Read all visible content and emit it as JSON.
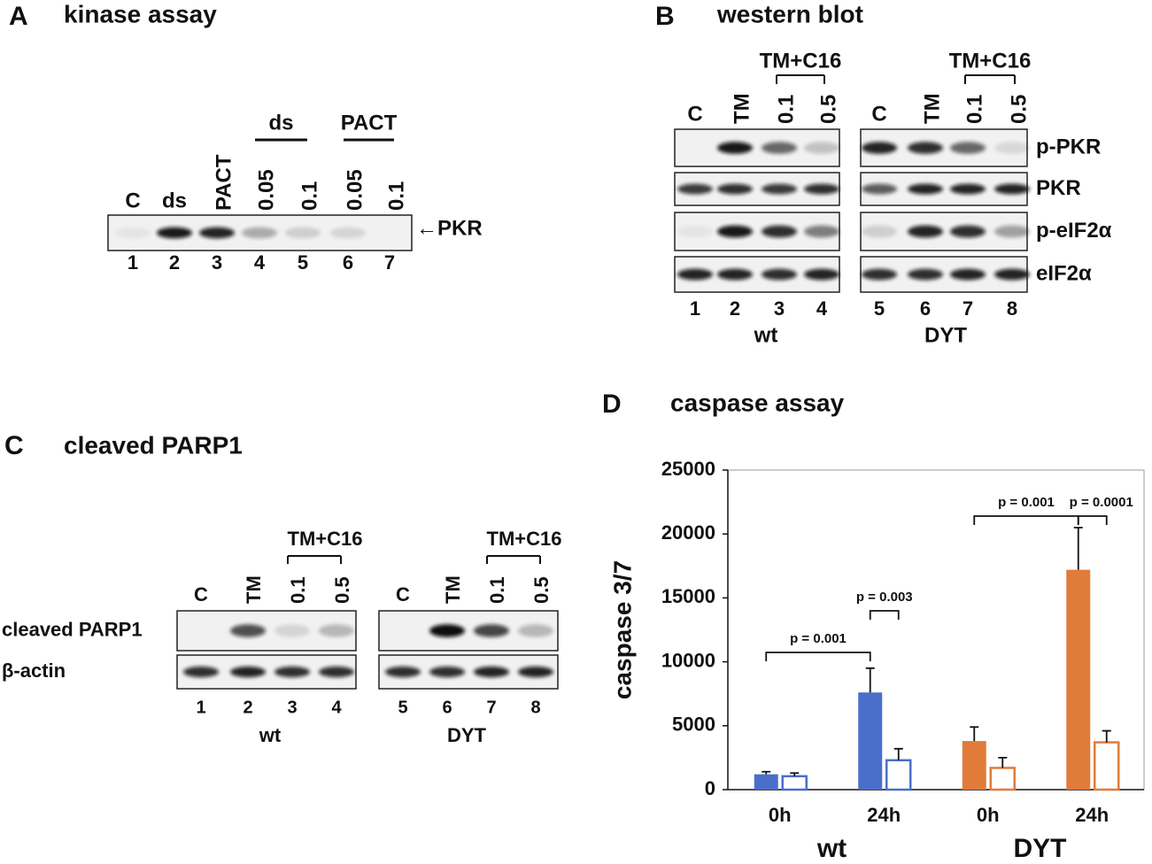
{
  "panel_a": {
    "label": "A",
    "title": "kinase assay",
    "lanes": [
      "C",
      "ds",
      "PACT",
      "0.05",
      "0.1",
      "0.05",
      "0.1"
    ],
    "groups": [
      "ds",
      "PACT"
    ],
    "band": "←PKR",
    "lane_numbers": [
      1,
      2,
      3,
      4,
      5,
      6,
      7
    ]
  },
  "panel_b": {
    "label": "B",
    "title": "western blot",
    "treatment": "TM+C16",
    "lanes_left": [
      "C",
      "TM",
      "0.1",
      "0.5"
    ],
    "lanes_right": [
      "C",
      "TM",
      "0.1",
      "0.5"
    ],
    "rows": [
      "p-PKR",
      "PKR",
      "p-eIF2α",
      "eIF2α"
    ],
    "lane_numbers": [
      1,
      2,
      3,
      4,
      5,
      6,
      7,
      8
    ],
    "groups": [
      "wt",
      "DYT"
    ]
  },
  "panel_c": {
    "label": "C",
    "title": "cleaved PARP1",
    "treatment": "TM+C16",
    "lanes_left": [
      "C",
      "TM",
      "0.1",
      "0.5"
    ],
    "lanes_right": [
      "C",
      "TM",
      "0.1",
      "0.5"
    ],
    "rows": [
      "cleaved PARP1",
      "β-actin"
    ],
    "lane_numbers": [
      1,
      2,
      3,
      4,
      5,
      6,
      7,
      8
    ],
    "groups": [
      "wt",
      "DYT"
    ]
  },
  "chart_data": {
    "type": "bar",
    "panel_label": "D",
    "title": "caspase assay",
    "y_label": "caspase 3/7",
    "categories": [
      "0h",
      "24h",
      "0h",
      "24h"
    ],
    "groups": [
      "wt",
      "DYT"
    ],
    "category_colors": [
      "#4a6fca",
      "#4a6fca",
      "#e07b39",
      "#e07b39"
    ],
    "series": [
      {
        "style": "filled",
        "values": [
          1200,
          7600,
          3800,
          17200
        ],
        "errors": [
          200,
          1900,
          1100,
          3300
        ]
      },
      {
        "style": "open",
        "values": [
          1050,
          2300,
          1700,
          3700
        ],
        "errors": [
          250,
          900,
          800,
          900
        ]
      }
    ],
    "annotations": [
      "p = 0.001",
      "p = 0.003",
      "p = 0.001",
      "p = 0.0001"
    ],
    "ylim": [
      0,
      25000
    ],
    "yticks": [
      0,
      5000,
      10000,
      15000,
      20000,
      25000
    ]
  }
}
